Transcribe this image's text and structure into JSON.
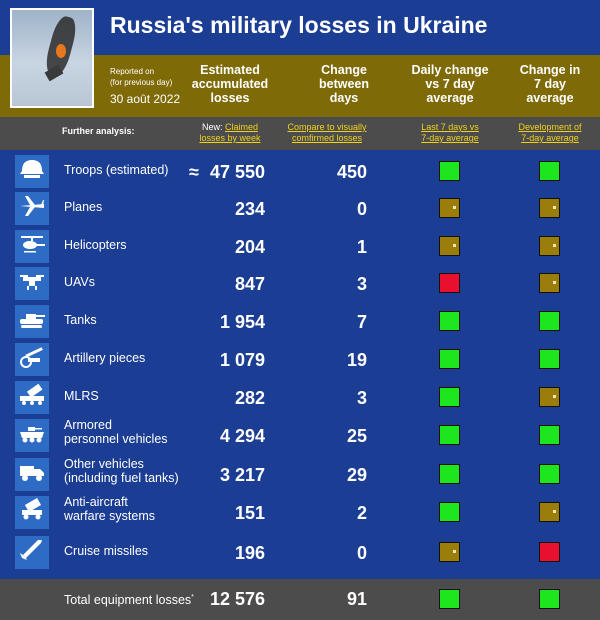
{
  "header": {
    "title": "Russia's military losses in Ukraine",
    "reported_line1": "Reported on",
    "reported_line2": "(for previous day)",
    "date": "30 août 2022"
  },
  "columns": {
    "accumulated": [
      "Estimated",
      "accumulated",
      "losses"
    ],
    "change": [
      "Change",
      "between",
      "days"
    ],
    "daily": [
      "Daily change",
      "vs 7 day",
      "average"
    ],
    "week": [
      "Change in",
      "7 day",
      "average"
    ]
  },
  "subheader": {
    "further": "Further analysis:",
    "new_label": "New:",
    "link_week_1": "Claimed",
    "link_week_2": "losses by week",
    "link_compare_1": "Compare to visually",
    "link_compare_2": "comfirmed losses",
    "link_last7_1": "Last 7 days vs",
    "link_last7_2": "7-day average",
    "link_dev_1": "Development of",
    "link_dev_2": "7-day average"
  },
  "rows": [
    {
      "label": "Troops (estimated)",
      "label2": "",
      "icon": "helmet-icon",
      "total": "47 550",
      "approx": "≈",
      "change": "450",
      "daily": "green",
      "week": "green"
    },
    {
      "label": "Planes",
      "label2": "",
      "icon": "plane-icon",
      "total": "234",
      "change": "0",
      "daily": "neutral",
      "week": "neutral"
    },
    {
      "label": "Helicopters",
      "label2": "",
      "icon": "helicopter-icon",
      "total": "204",
      "change": "1",
      "daily": "neutral",
      "week": "neutral"
    },
    {
      "label": "UAVs",
      "label2": "",
      "icon": "drone-icon",
      "total": "847",
      "change": "3",
      "daily": "red",
      "week": "neutral"
    },
    {
      "label": "Tanks",
      "label2": "",
      "icon": "tank-icon",
      "total": "1 954",
      "change": "7",
      "daily": "green",
      "week": "green"
    },
    {
      "label": "Artillery pieces",
      "label2": "",
      "icon": "artillery-icon",
      "total": "1 079",
      "change": "19",
      "daily": "green",
      "week": "green"
    },
    {
      "label": "MLRS",
      "label2": "",
      "icon": "mlrs-icon",
      "total": "282",
      "change": "3",
      "daily": "green",
      "week": "neutral"
    },
    {
      "label": "Armored",
      "label2": "personnel vehicles",
      "icon": "apc-icon",
      "total": "4 294",
      "change": "25",
      "daily": "green",
      "week": "green"
    },
    {
      "label": "Other vehicles",
      "label2": "(including fuel tanks)",
      "icon": "truck-icon",
      "total": "3 217",
      "change": "29",
      "daily": "green",
      "week": "green"
    },
    {
      "label": "Anti-aircraft",
      "label2": "warfare systems",
      "icon": "anti-aircraft-icon",
      "total": "151",
      "change": "2",
      "daily": "green",
      "week": "neutral"
    },
    {
      "label": "Cruise missiles",
      "label2": "",
      "icon": "missile-icon",
      "total": "196",
      "change": "0",
      "daily": "neutral",
      "week": "red"
    }
  ],
  "total": {
    "label": "Total equipment losses",
    "mark": "*",
    "value": "12 576",
    "change": "91",
    "daily": "green",
    "week": "green"
  },
  "colors": {
    "blue": "#1b3d93",
    "gold": "#7f6a08",
    "gray": "#4c4c4c",
    "green": "#1ee61e",
    "red": "#e8102e",
    "link": "#f2d21b"
  }
}
